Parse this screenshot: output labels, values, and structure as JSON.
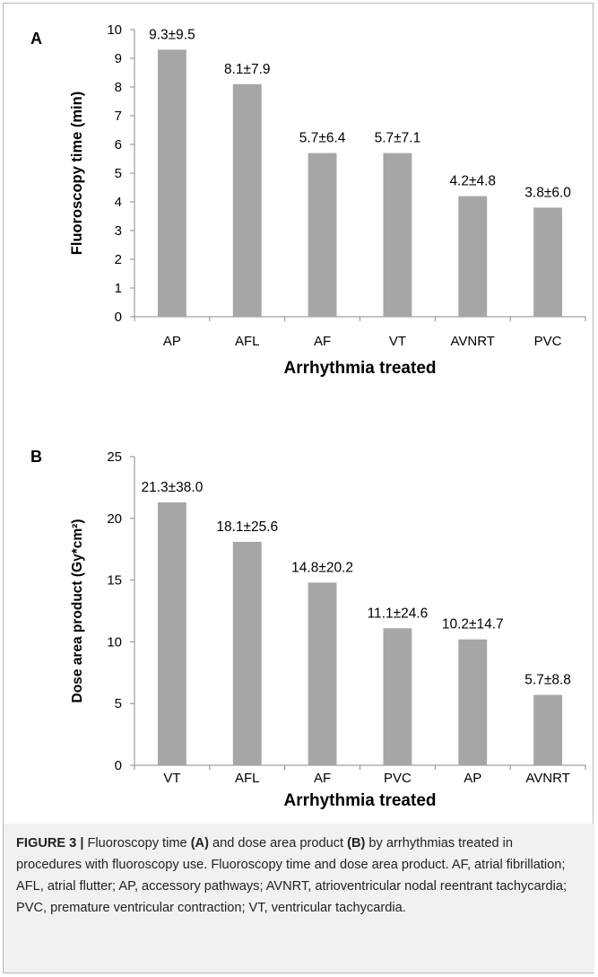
{
  "chart_data": [
    {
      "type": "bar",
      "panel": "A",
      "categories": [
        "AP",
        "AFL",
        "AF",
        "VT",
        "AVNRT",
        "PVC"
      ],
      "values": [
        9.3,
        8.1,
        5.7,
        5.7,
        4.2,
        3.8
      ],
      "data_labels": [
        "9.3±9.5",
        "8.1±7.9",
        "5.7±6.4",
        "5.7±7.1",
        "4.2±4.8",
        "3.8±6.0"
      ],
      "xlabel": "Arrhythmia treated",
      "ylabel": "Fluoroscopy time (min)",
      "ylim": [
        0,
        10
      ],
      "yticks": [
        0,
        1,
        2,
        3,
        4,
        5,
        6,
        7,
        8,
        9,
        10
      ],
      "bar_color": "#a6a6a6",
      "grid": false
    },
    {
      "type": "bar",
      "panel": "B",
      "categories": [
        "VT",
        "AFL",
        "AF",
        "PVC",
        "AP",
        "AVNRT"
      ],
      "values": [
        21.3,
        18.1,
        14.8,
        11.1,
        10.2,
        5.7
      ],
      "data_labels": [
        "21.3±38.0",
        "18.1±25.6",
        "14.8±20.2",
        "11.1±24.6",
        "10.2±14.7",
        "5.7±8.8"
      ],
      "xlabel": "Arrhythmia treated",
      "ylabel": "Dose area product (Gy*cm²)",
      "ylim": [
        0,
        25
      ],
      "yticks": [
        0,
        5,
        10,
        15,
        20,
        25
      ],
      "bar_color": "#a6a6a6",
      "grid": false
    }
  ],
  "caption": {
    "figure_label": "FIGURE 3 |",
    "segments": [
      {
        "text": " Fluoroscopy time ",
        "bold": false
      },
      {
        "text": "(A)",
        "bold": true
      },
      {
        "text": " and dose area product ",
        "bold": false
      },
      {
        "text": "(B)",
        "bold": true
      },
      {
        "text": " by arrhythmias treated in procedures with fluoroscopy use. Fluoroscopy time and dose area product. AF, atrial fibrillation; AFL, atrial flutter; AP, accessory pathways; AVNRT, atrioventricular nodal reentrant tachycardia; PVC, premature ventricular contraction; VT, ventricular tachycardia.",
        "bold": false
      }
    ]
  }
}
